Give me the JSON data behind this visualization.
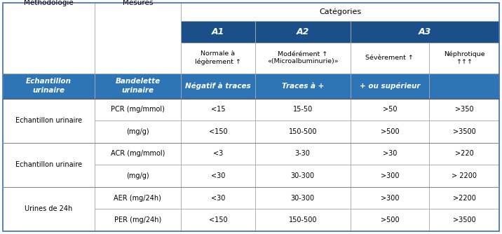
{
  "header_bg": "#1B4F8A",
  "header_fg": "#FFFFFF",
  "mid_blue": "#2E75B6",
  "mid_blue_fg": "#FFFFFF",
  "white": "#FFFFFF",
  "border_outer": "#4472C4",
  "border_inner": "#AAAAAA",
  "border_group": "#888888",
  "categories_label": "Catégories",
  "methodology_label": "Méthodologie",
  "measures_label": "Mesures",
  "col_A_headers": [
    "A1",
    "A2",
    "A3"
  ],
  "col_subheaders": [
    "Normale à\nlégèrement ↑",
    "Modérément ↑\n«(Microalbuminurie)»",
    "Sévèrement ↑",
    "Néphrotique\n↑↑↑"
  ],
  "special_left": "Echantillon\nurinaire",
  "special_right": "Bandelette\nurinaire",
  "special_cols": [
    "Négatif à traces",
    "Traces à +",
    "+ ou supérieur",
    ""
  ],
  "data_groups": [
    {
      "methodology": "Echantillon urinaire",
      "rows": [
        {
          "measure": "PCR (mg/mmol)",
          "a1": "<15",
          "a2": "15-50",
          "a3s": ">50",
          "a3n": ">350"
        },
        {
          "measure": "(mg/g)",
          "a1": "<150",
          "a2": "150-500",
          "a3s": ">500",
          "a3n": ">3500"
        }
      ]
    },
    {
      "methodology": "Echantillon urinaire",
      "rows": [
        {
          "measure": "ACR (mg/mmol)",
          "a1": "<3",
          "a2": "3-30",
          "a3s": ">30",
          "a3n": ">220"
        },
        {
          "measure": "(mg/g)",
          "a1": "<30",
          "a2": "30-300",
          "a3s": ">300",
          "a3n": "> 2200"
        }
      ]
    },
    {
      "methodology": "Urines de 24h",
      "rows": [
        {
          "measure": "AER (mg/24h)",
          "a1": "<30",
          "a2": "30-300",
          "a3s": ">300",
          "a3n": ">2200"
        },
        {
          "measure": "PER (mg/24h)",
          "a1": "<150",
          "a2": "150-500",
          "a3s": ">500",
          "a3n": ">3500"
        }
      ]
    }
  ]
}
